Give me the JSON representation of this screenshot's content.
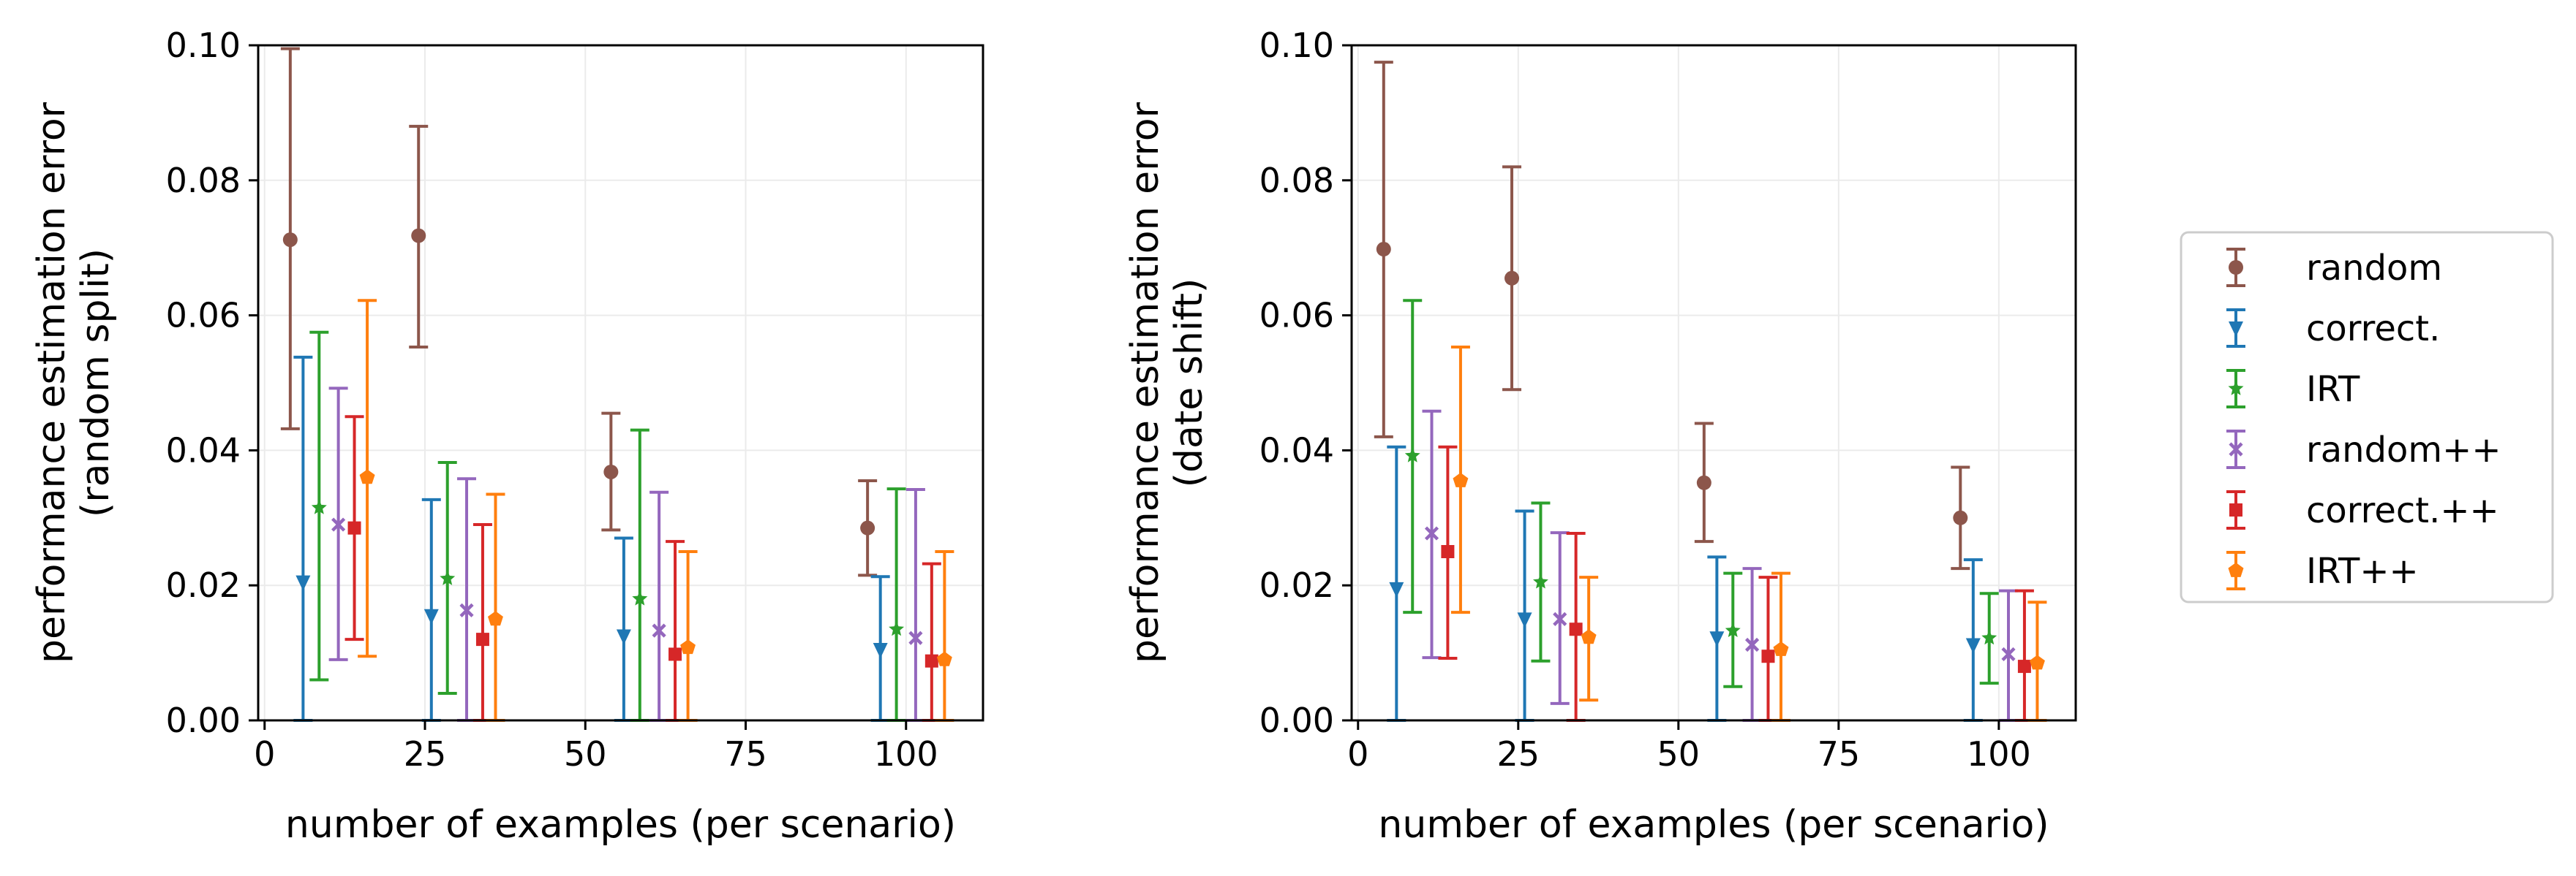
{
  "chart_data": [
    {
      "type": "scatter",
      "xlabel": "number of examples (per scenario)",
      "ylabel": [
        "performance estimation error",
        "(random split)"
      ],
      "xlim": [
        -1,
        112
      ],
      "ylim": [
        0,
        0.1
      ],
      "xticks": [
        "0",
        "25",
        "50",
        "75",
        "100"
      ],
      "yticks": [
        "0.00",
        "0.02",
        "0.04",
        "0.06",
        "0.08",
        "0.10"
      ],
      "grid": true,
      "x": [
        10,
        30,
        60,
        100
      ],
      "series": [
        {
          "name": "random",
          "color": "#8c564b",
          "marker": "circle",
          "values": [
            0.0712,
            0.0718,
            0.0368,
            0.0285
          ],
          "lower": [
            0.0432,
            0.0553,
            0.0282,
            0.0215
          ],
          "upper": [
            0.0995,
            0.088,
            0.0455,
            0.0355
          ]
        },
        {
          "name": "correct.",
          "color": "#1f77b4",
          "marker": "triangle-down",
          "values": [
            0.0205,
            0.0155,
            0.0125,
            0.0105
          ],
          "lower": [
            0.0,
            0.0,
            0.0,
            0.0
          ],
          "upper": [
            0.0538,
            0.0327,
            0.027,
            0.0213
          ]
        },
        {
          "name": "IRT",
          "color": "#2ca02c",
          "marker": "star",
          "values": [
            0.0315,
            0.021,
            0.018,
            0.0135
          ],
          "lower": [
            0.006,
            0.004,
            0.0,
            0.0
          ],
          "upper": [
            0.0575,
            0.0382,
            0.043,
            0.0343
          ]
        },
        {
          "name": "random++",
          "color": "#9467bd",
          "marker": "x",
          "values": [
            0.029,
            0.0163,
            0.0133,
            0.0122
          ],
          "lower": [
            0.009,
            0.0,
            0.0,
            0.0
          ],
          "upper": [
            0.0492,
            0.0358,
            0.0338,
            0.0342
          ]
        },
        {
          "name": "correct.++",
          "color": "#d62728",
          "marker": "square",
          "values": [
            0.0285,
            0.012,
            0.0098,
            0.0088
          ],
          "lower": [
            0.012,
            0.0,
            0.0,
            0.0
          ],
          "upper": [
            0.045,
            0.029,
            0.0265,
            0.0232
          ]
        },
        {
          "name": "IRT++",
          "color": "#ff7f0e",
          "marker": "pentagon",
          "values": [
            0.036,
            0.015,
            0.0108,
            0.009
          ],
          "lower": [
            0.0095,
            0.0,
            0.0,
            0.0
          ],
          "upper": [
            0.0622,
            0.0335,
            0.025,
            0.025
          ]
        }
      ]
    },
    {
      "type": "scatter",
      "xlabel": "number of examples (per scenario)",
      "ylabel": [
        "performance estimation error",
        "(date shift)"
      ],
      "xlim": [
        -1,
        112
      ],
      "ylim": [
        0,
        0.1
      ],
      "xticks": [
        "0",
        "25",
        "50",
        "75",
        "100"
      ],
      "yticks": [
        "0.00",
        "0.02",
        "0.04",
        "0.06",
        "0.08",
        "0.10"
      ],
      "grid": true,
      "x": [
        10,
        30,
        60,
        100
      ],
      "series": [
        {
          "name": "random",
          "color": "#8c564b",
          "marker": "circle",
          "values": [
            0.0698,
            0.0655,
            0.0352,
            0.03
          ],
          "lower": [
            0.042,
            0.049,
            0.0265,
            0.0225
          ],
          "upper": [
            0.0975,
            0.082,
            0.044,
            0.0375
          ]
        },
        {
          "name": "correct.",
          "color": "#1f77b4",
          "marker": "triangle-down",
          "values": [
            0.0195,
            0.015,
            0.0122,
            0.0112
          ],
          "lower": [
            0.0,
            0.0,
            0.0,
            0.0
          ],
          "upper": [
            0.0405,
            0.031,
            0.0242,
            0.0238
          ]
        },
        {
          "name": "IRT",
          "color": "#2ca02c",
          "marker": "star",
          "values": [
            0.0392,
            0.0205,
            0.0133,
            0.0122
          ],
          "lower": [
            0.016,
            0.0088,
            0.005,
            0.0055
          ],
          "upper": [
            0.0622,
            0.0322,
            0.0218,
            0.0188
          ]
        },
        {
          "name": "random++",
          "color": "#9467bd",
          "marker": "x",
          "values": [
            0.0277,
            0.015,
            0.0112,
            0.0098
          ],
          "lower": [
            0.0093,
            0.0025,
            0.0,
            0.0
          ],
          "upper": [
            0.0458,
            0.0278,
            0.0225,
            0.0192
          ]
        },
        {
          "name": "correct.++",
          "color": "#d62728",
          "marker": "square",
          "values": [
            0.025,
            0.0135,
            0.0095,
            0.008
          ],
          "lower": [
            0.0092,
            0.0,
            0.0,
            0.0
          ],
          "upper": [
            0.0405,
            0.0277,
            0.0212,
            0.0192
          ]
        },
        {
          "name": "IRT++",
          "color": "#ff7f0e",
          "marker": "pentagon",
          "values": [
            0.0355,
            0.0123,
            0.0105,
            0.0085
          ],
          "lower": [
            0.016,
            0.003,
            0.0,
            0.0
          ],
          "upper": [
            0.0553,
            0.0212,
            0.0218,
            0.0175
          ]
        }
      ]
    }
  ],
  "legend": {
    "placement": "right, outside",
    "entries": [
      "random",
      "correct.",
      "IRT",
      "random++",
      "correct.++",
      "IRT++"
    ]
  }
}
